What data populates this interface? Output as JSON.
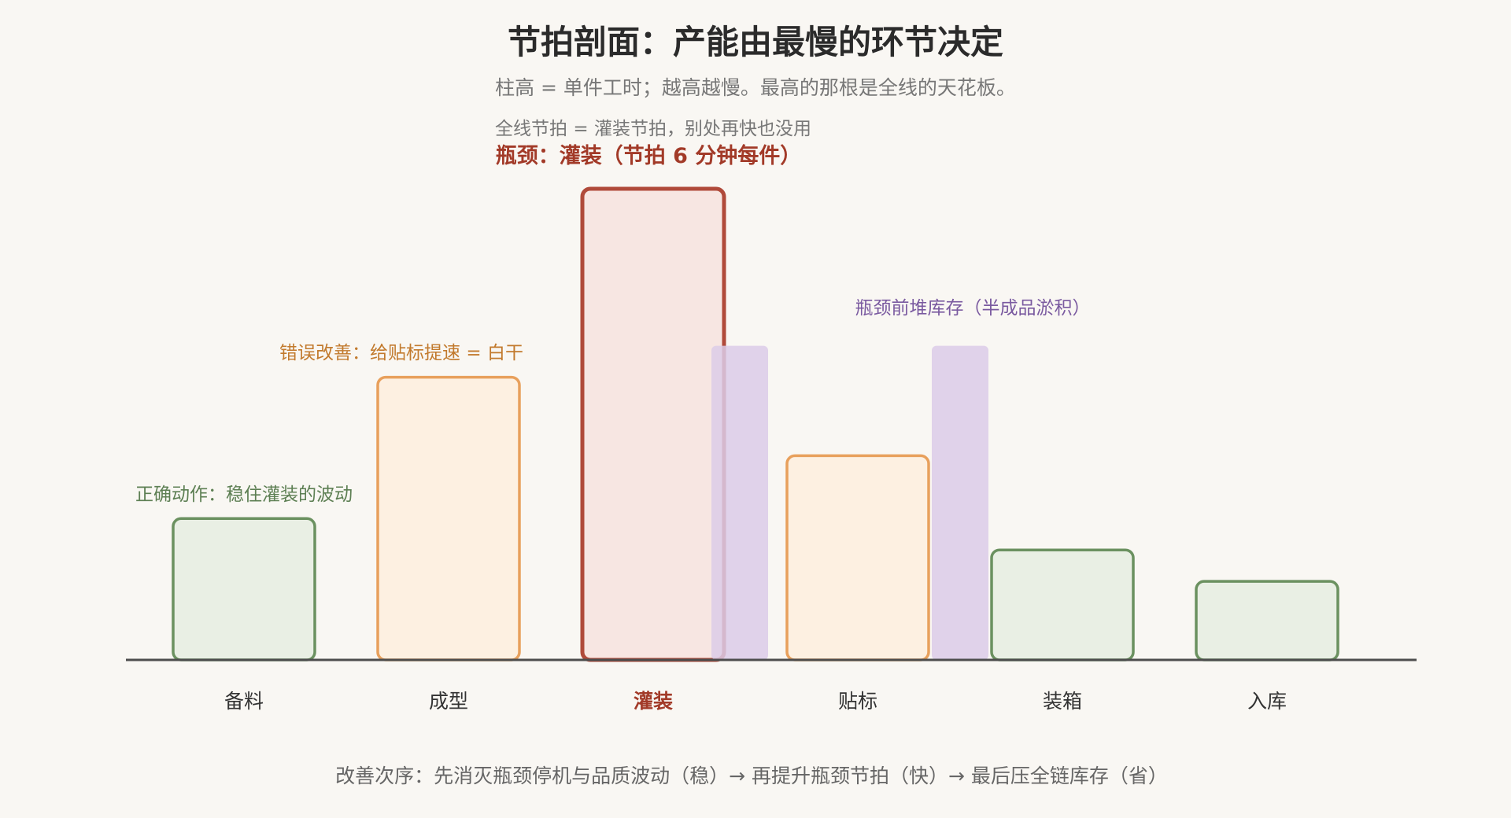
{
  "chart_data": {
    "type": "bar",
    "title": "节拍剖面：产能由最慢的环节决定",
    "subtitle": "柱高 = 单件工时；越高越慢。最高的那根是全线的天花板。",
    "categories": [
      "备料",
      "成型",
      "灌装",
      "贴标",
      "装箱",
      "入库"
    ],
    "values": [
      1.8,
      3.6,
      6,
      2.6,
      1.4,
      1.0
    ],
    "bar_colors": [
      "#6b9160",
      "#e8a05c",
      "#b04a3a",
      "#e8a05c",
      "#6b9160",
      "#6b9160"
    ],
    "bar_fills": [
      "#e9efe4",
      "#fdf0e1",
      "#f7e6e2",
      "#fdf0e1",
      "#e9efe4",
      "#e9efe4"
    ],
    "bottleneck_index": 2,
    "ylim": [
      0,
      6
    ],
    "inventory": {
      "label": "瓶颈前堆库存（半成品淤积）",
      "values": [
        4,
        4
      ],
      "color": "#dccbe8"
    },
    "annotations": [
      {
        "target": "备料",
        "text": "正确动作：稳住灌装的波动",
        "color": "#5d7f53"
      },
      {
        "target": "成型",
        "text": "错误改善：给贴标提速 = 白干",
        "color": "#c27a2d"
      },
      {
        "target": "灌装",
        "text": "全线节拍 = 灌装节拍，别处再快也没用",
        "color": "#777777"
      },
      {
        "target": "灌装",
        "text": "瓶颈：灌装（节拍 6 分钟每件）",
        "color": "#a23a28"
      }
    ],
    "footer": "改善次序：先消灭瓶颈停机与品质波动（稳）→ 再提升瓶颈节拍（快）→ 最后压全链库存（省）"
  }
}
